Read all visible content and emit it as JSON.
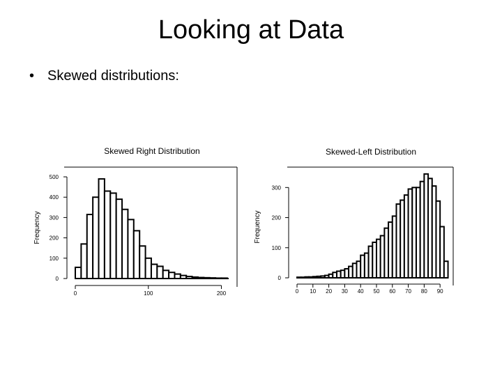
{
  "slide": {
    "title": "Looking at Data",
    "bullet": "Skewed distributions:"
  },
  "chart_data": [
    {
      "type": "bar",
      "title": "Skewed Right Distribution",
      "ylabel": "Frequency",
      "xlabel": "",
      "bin_width": 8,
      "x_start": 0,
      "xlim": [
        0,
        210
      ],
      "ylim": [
        0,
        500
      ],
      "xticks": [
        0,
        100,
        200
      ],
      "yticks": [
        0,
        100,
        200,
        300,
        400,
        500
      ],
      "xtick_labels": [
        "0",
        "100",
        "200"
      ],
      "ytick_labels": [
        "0",
        "100",
        "200",
        "300",
        "400",
        "500"
      ],
      "values": [
        55,
        170,
        315,
        400,
        490,
        430,
        420,
        390,
        340,
        290,
        235,
        160,
        100,
        70,
        60,
        40,
        30,
        22,
        15,
        10,
        7,
        5,
        4,
        3,
        2,
        2
      ],
      "grid": false,
      "legend": "none"
    },
    {
      "type": "bar",
      "title": "Skewed-Left Distribution",
      "ylabel": "Frequency",
      "xlabel": "",
      "bin_width": 2.5,
      "x_start": 0,
      "xlim": [
        0,
        93
      ],
      "ylim": [
        0,
        340
      ],
      "xticks": [
        0,
        10,
        20,
        30,
        40,
        50,
        60,
        70,
        80,
        90
      ],
      "yticks": [
        0,
        100,
        200,
        300
      ],
      "xtick_labels": [
        "0",
        "10",
        "20",
        "30",
        "40",
        "50",
        "60",
        "70",
        "80",
        "90"
      ],
      "ytick_labels": [
        "0",
        "100",
        "200",
        "300"
      ],
      "values": [
        2,
        2,
        3,
        3,
        4,
        5,
        6,
        8,
        12,
        18,
        22,
        25,
        30,
        38,
        48,
        55,
        75,
        82,
        105,
        118,
        128,
        140,
        165,
        185,
        205,
        245,
        258,
        275,
        295,
        300,
        300,
        320,
        345,
        330,
        305,
        255,
        170,
        55
      ],
      "grid": false,
      "legend": "none"
    }
  ]
}
